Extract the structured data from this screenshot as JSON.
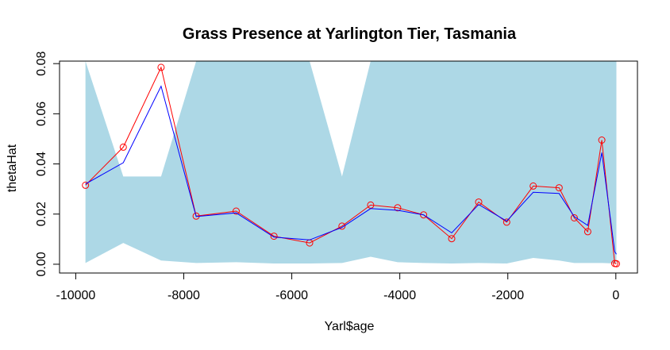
{
  "chart_data": {
    "type": "line",
    "title": "Grass Presence at Yarlington Tier, Tasmania",
    "xlabel": "Yarl$age",
    "ylabel": "thetaHat",
    "xlim": [
      -10300,
      400
    ],
    "ylim": [
      -0.0035,
      0.081
    ],
    "x_ticks": [
      -10000,
      -8000,
      -6000,
      -4000,
      -2000,
      0
    ],
    "x_tick_labels": [
      "-10000",
      "-8000",
      "-6000",
      "-4000",
      "-2000",
      "0"
    ],
    "y_ticks": [
      0.0,
      0.02,
      0.04,
      0.06,
      0.08
    ],
    "y_tick_labels": [
      "0.00",
      "0.02",
      "0.04",
      "0.06",
      "0.08"
    ],
    "grid": false,
    "colors": {
      "band": "#add8e6",
      "observed": "#ff0000",
      "fitted": "#0000ff"
    },
    "series": [
      {
        "style": "points-and-line",
        "color": "#ff0000",
        "x": [
          -9820,
          -9120,
          -8420,
          -7770,
          -7030,
          -6330,
          -5670,
          -5070,
          -4540,
          -4040,
          -3560,
          -3040,
          -2540,
          -2020,
          -1530,
          -1050,
          -770,
          -520,
          -260,
          -20,
          10
        ],
        "y": [
          0.0315,
          0.0467,
          0.0785,
          0.0192,
          0.0212,
          0.0112,
          0.0085,
          0.0152,
          0.0236,
          0.0225,
          0.0197,
          0.0102,
          0.0248,
          0.0168,
          0.0312,
          0.0305,
          0.0185,
          0.013,
          0.0495,
          0.0003,
          0.0002
        ]
      },
      {
        "style": "line",
        "color": "#0000ff",
        "x": [
          -9820,
          -9120,
          -8420,
          -7770,
          -7030,
          -6330,
          -5670,
          -5070,
          -4540,
          -4040,
          -3560,
          -3040,
          -2540,
          -2020,
          -1530,
          -1050,
          -770,
          -520,
          -260,
          -20,
          10
        ],
        "y": [
          0.032,
          0.0405,
          0.071,
          0.019,
          0.0205,
          0.0108,
          0.0097,
          0.0147,
          0.0222,
          0.0215,
          0.0197,
          0.0125,
          0.0238,
          0.0172,
          0.0287,
          0.0282,
          0.019,
          0.0155,
          0.0445,
          0.005,
          0.004
        ]
      }
    ],
    "band": {
      "color": "#add8e6",
      "x": [
        -9820,
        -9120,
        -8420,
        -7770,
        -7030,
        -6330,
        -5670,
        -5070,
        -4540,
        -4040,
        -3560,
        -3040,
        -2540,
        -2020,
        -1530,
        -1050,
        -770,
        -520,
        -260,
        -20,
        10
      ],
      "upper": [
        0.081,
        0.035,
        0.035,
        0.081,
        0.081,
        0.081,
        0.081,
        0.035,
        0.081,
        0.081,
        0.081,
        0.081,
        0.081,
        0.081,
        0.081,
        0.081,
        0.081,
        0.081,
        0.081,
        0.081,
        0.081
      ],
      "lower": [
        0.0005,
        0.0085,
        0.0015,
        0.0005,
        0.0008,
        0.0003,
        0.0003,
        0.0005,
        0.003,
        0.0008,
        0.0005,
        0.0003,
        0.0005,
        0.0003,
        0.0025,
        0.0015,
        0.0005,
        0.0005,
        0.0005,
        0.0003,
        0.0003
      ]
    }
  }
}
